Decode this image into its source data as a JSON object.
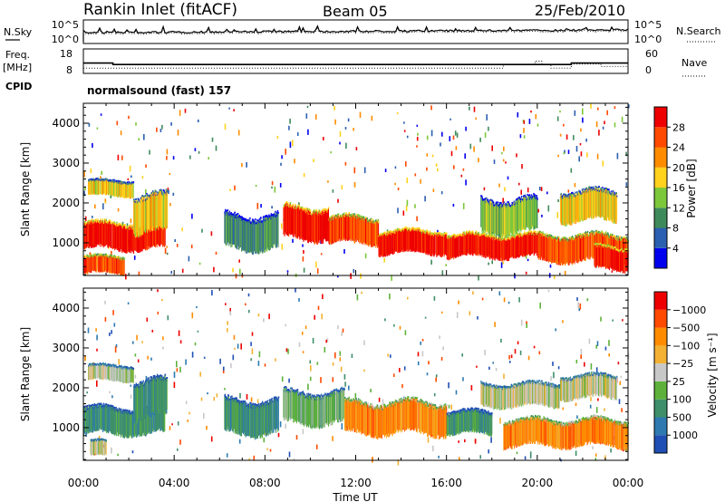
{
  "header": {
    "station": "Rankin Inlet (fitACF)",
    "beam": "Beam 05",
    "date": "25/Feb/2010"
  },
  "chart_data": [
    {
      "type": "line",
      "panel": "noise",
      "labels": {
        "left": "N.Sky",
        "right": "N.Search"
      },
      "left_ticks": [
        "10^5",
        "10^0"
      ],
      "right_ticks": [
        "10^5",
        "10^0"
      ]
    },
    {
      "type": "line",
      "panel": "frequency",
      "labels": {
        "left_top": "Freq.",
        "left_unit": "[MHz]",
        "right": "Nave"
      },
      "left_ticks": [
        "18",
        "8"
      ],
      "right_ticks": [
        "60",
        "0"
      ],
      "freq_steps": [
        [
          0.0,
          12
        ],
        [
          1.3,
          12
        ],
        [
          1.3,
          11
        ],
        [
          21.5,
          11
        ],
        [
          21.5,
          12
        ],
        [
          24.0,
          12
        ]
      ],
      "nave_steps": [
        [
          0.0,
          3
        ],
        [
          18.5,
          3
        ],
        [
          18.5,
          18
        ],
        [
          19.9,
          18
        ],
        [
          19.9,
          32
        ],
        [
          20.2,
          32
        ],
        [
          20.2,
          18
        ],
        [
          20.6,
          18
        ],
        [
          20.6,
          3
        ],
        [
          21.5,
          3
        ],
        [
          21.5,
          20
        ],
        [
          22.8,
          20
        ],
        [
          22.8,
          10
        ],
        [
          24.0,
          10
        ]
      ]
    },
    {
      "type": "heatmap",
      "panel": "cpid",
      "labels": {
        "left": "CPID"
      },
      "text": "normalsound (fast) 157"
    },
    {
      "type": "heatmap",
      "panel": "power",
      "ylabel": "Slant Range [km]",
      "yticks": [
        1000,
        2000,
        3000,
        4000
      ],
      "ylim": [
        180,
        4500
      ],
      "xlim": [
        0,
        24
      ],
      "colorbar_title": "Power [dB]",
      "colorbar_ticks": [
        "4",
        "8",
        "12",
        "16",
        "20",
        "24",
        "28"
      ],
      "colors": [
        "#0000ee",
        "#2b5fb0",
        "#3f8a5a",
        "#7cc83a",
        "#ffd21e",
        "#ff8c00",
        "#ff4a00",
        "#ee0000"
      ],
      "bands": [
        {
          "t0": 0.0,
          "t1": 3.6,
          "r0": 800,
          "r1": 1500,
          "v": 7
        },
        {
          "t0": 0.2,
          "t1": 2.2,
          "r0": 2150,
          "r1": 2550,
          "v": 4
        },
        {
          "t0": 0.0,
          "t1": 1.8,
          "r0": 200,
          "r1": 650,
          "v": 6
        },
        {
          "t0": 2.2,
          "t1": 3.7,
          "r0": 1200,
          "r1": 2200,
          "v": 4
        },
        {
          "t0": 6.2,
          "t1": 8.6,
          "r0": 800,
          "r1": 1700,
          "v": 2
        },
        {
          "t0": 8.8,
          "t1": 10.8,
          "r0": 1050,
          "r1": 1900,
          "v": 7
        },
        {
          "t0": 10.8,
          "t1": 13.0,
          "r0": 950,
          "r1": 1650,
          "v": 6
        },
        {
          "t0": 13.0,
          "t1": 16.0,
          "r0": 700,
          "r1": 1300,
          "v": 7
        },
        {
          "t0": 16.0,
          "t1": 20.0,
          "r0": 600,
          "r1": 1200,
          "v": 7
        },
        {
          "t0": 17.5,
          "t1": 20.0,
          "r0": 1200,
          "r1": 2100,
          "v": 3
        },
        {
          "t0": 20.0,
          "t1": 24.0,
          "r0": 500,
          "r1": 1200,
          "v": 6
        },
        {
          "t0": 21.0,
          "t1": 23.5,
          "r0": 1500,
          "r1": 2300,
          "v": 4
        },
        {
          "t0": 22.5,
          "t1": 24.0,
          "r0": 300,
          "r1": 900,
          "v": 7
        }
      ]
    },
    {
      "type": "heatmap",
      "panel": "velocity",
      "ylabel": "Slant Range [km]",
      "yticks": [
        1000,
        2000,
        3000,
        4000
      ],
      "ylim": [
        180,
        4500
      ],
      "xlim": [
        0,
        24
      ],
      "xticks": [
        "00:00",
        "04:00",
        "08:00",
        "12:00",
        "16:00",
        "20:00",
        "00:00"
      ],
      "xlabel": "Time UT",
      "colorbar_title": "Velocity [m s⁻¹]",
      "colorbar_ticks": [
        "1000",
        "500",
        "100",
        "25",
        "−25",
        "−100",
        "−500",
        "−1000"
      ],
      "colors": [
        "#1f4fb4",
        "#2e7ab0",
        "#3e8f6a",
        "#5db13a",
        "#c8c8c8",
        "#f3b133",
        "#ff8c00",
        "#ff4a00",
        "#ee0000"
      ],
      "bands": [
        {
          "t0": 0.0,
          "t1": 3.6,
          "r0": 800,
          "r1": 1500,
          "v": 2
        },
        {
          "t0": 0.2,
          "t1": 2.2,
          "r0": 2150,
          "r1": 2550,
          "v": 4
        },
        {
          "t0": 0.3,
          "t1": 1.0,
          "r0": 250,
          "r1": 650,
          "v": 4
        },
        {
          "t0": 2.2,
          "t1": 3.7,
          "r0": 1200,
          "r1": 2200,
          "v": 2
        },
        {
          "t0": 6.2,
          "t1": 8.6,
          "r0": 800,
          "r1": 1700,
          "v": 2
        },
        {
          "t0": 8.8,
          "t1": 11.5,
          "r0": 1050,
          "r1": 1900,
          "v": 3
        },
        {
          "t0": 11.5,
          "t1": 16.0,
          "r0": 800,
          "r1": 1650,
          "v": 6
        },
        {
          "t0": 16.0,
          "t1": 18.0,
          "r0": 800,
          "r1": 1400,
          "v": 2
        },
        {
          "t0": 17.5,
          "t1": 21.0,
          "r0": 1500,
          "r1": 2100,
          "v": 4
        },
        {
          "t0": 18.5,
          "t1": 24.0,
          "r0": 500,
          "r1": 1200,
          "v": 6
        },
        {
          "t0": 21.0,
          "t1": 23.5,
          "r0": 1700,
          "r1": 2300,
          "v": 4
        }
      ]
    }
  ]
}
